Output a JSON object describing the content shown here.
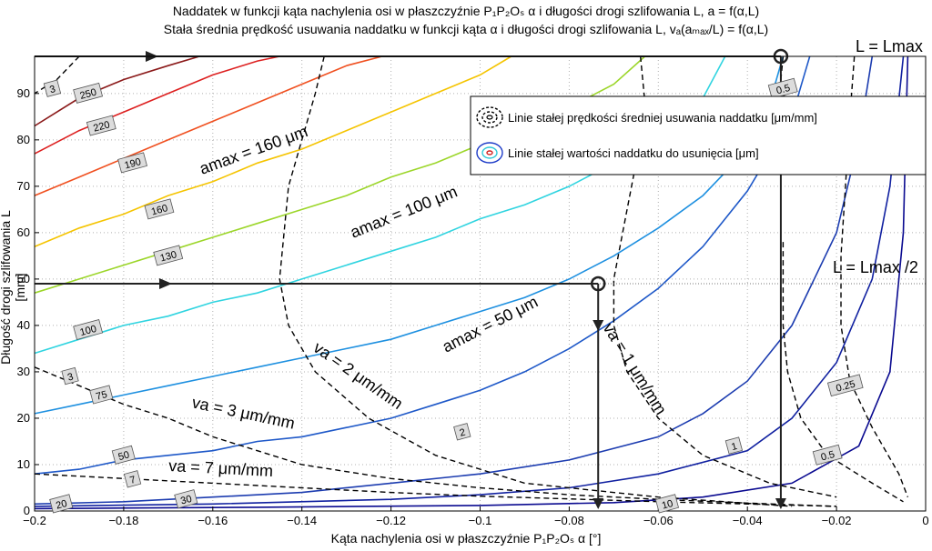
{
  "title_line1": "Naddatek w funkcji kąta nachylenia osi w płaszczyźnie P₁P₂Oₛ α i długości drogi szlifowania L, a = f(α,L)",
  "title_line2": "Stała średnia prędkość usuwania naddatku w funkcji kąta α i długości drogi szlifowania L, vₐ(aₘₐₓ/L) = f(α,L)",
  "xlabel": "Kąta nachylenia osi w płaszczyźnie P₁P₂Oₛ α [°]",
  "ylabel": "Długość drogi szlifowania L [mm]",
  "legend": {
    "black_lines": "Linie stałej prędkości średniej usuwania naddatku [μm/mm]",
    "color_lines": "Linie stałej wartości naddatku do usunięcia [μm]"
  },
  "annotations": {
    "L_max": "L = Lmax",
    "L_half": "L = Lmax /2",
    "a160": "amax = 160 μm",
    "a100": "amax = 100 μm",
    "a50": "amax = 50 μm",
    "va1": "va = 1 μm/mm",
    "va2": "va = 2 μm/mm",
    "va3": "va = 3 μm/mm",
    "va7": "va = 7 μm/mm"
  },
  "chart_data": {
    "type": "line",
    "xlim": [
      -0.2,
      0
    ],
    "ylim": [
      0,
      98
    ],
    "xticks": [
      -0.2,
      -0.18,
      -0.16,
      -0.14,
      -0.12,
      -0.1,
      -0.08,
      -0.06,
      -0.04,
      -0.02,
      0
    ],
    "yticks": [
      0,
      10,
      20,
      30,
      40,
      50,
      60,
      70,
      80,
      90
    ],
    "grid": true,
    "legend_position": "top-right",
    "contours_a": [
      {
        "level": "250",
        "color": "#8b1a1a",
        "points": [
          [
            -0.2,
            83
          ],
          [
            -0.19,
            89
          ],
          [
            -0.18,
            93
          ],
          [
            -0.17,
            96
          ],
          [
            -0.163,
            98
          ]
        ],
        "label_at": [
          -0.188,
          90
        ]
      },
      {
        "level": "220",
        "color": "#dd2020",
        "points": [
          [
            -0.2,
            77
          ],
          [
            -0.19,
            82
          ],
          [
            -0.18,
            86
          ],
          [
            -0.17,
            90
          ],
          [
            -0.16,
            94
          ],
          [
            -0.15,
            97
          ],
          [
            -0.145,
            98
          ]
        ],
        "label_at": [
          -0.185,
          83
        ]
      },
      {
        "level": "190",
        "color": "#f05020",
        "points": [
          [
            -0.2,
            68
          ],
          [
            -0.19,
            72
          ],
          [
            -0.18,
            76
          ],
          [
            -0.17,
            80
          ],
          [
            -0.16,
            84
          ],
          [
            -0.15,
            88
          ],
          [
            -0.14,
            92
          ],
          [
            -0.13,
            96
          ],
          [
            -0.122,
            98
          ]
        ],
        "label_at": [
          -0.178,
          75
        ]
      },
      {
        "level": "160",
        "color": "#f5c400",
        "points": [
          [
            -0.2,
            57
          ],
          [
            -0.19,
            61
          ],
          [
            -0.18,
            64
          ],
          [
            -0.17,
            68
          ],
          [
            -0.16,
            71
          ],
          [
            -0.15,
            75
          ],
          [
            -0.14,
            78
          ],
          [
            -0.13,
            82
          ],
          [
            -0.12,
            86
          ],
          [
            -0.11,
            90
          ],
          [
            -0.1,
            94
          ],
          [
            -0.093,
            98
          ]
        ],
        "label_at": [
          -0.172,
          65
        ]
      },
      {
        "level": "130",
        "color": "#9cd62a",
        "points": [
          [
            -0.2,
            47
          ],
          [
            -0.19,
            50
          ],
          [
            -0.18,
            53
          ],
          [
            -0.17,
            56
          ],
          [
            -0.16,
            59
          ],
          [
            -0.15,
            62
          ],
          [
            -0.14,
            65
          ],
          [
            -0.13,
            68
          ],
          [
            -0.12,
            72
          ],
          [
            -0.11,
            75
          ],
          [
            -0.1,
            79
          ],
          [
            -0.09,
            83
          ],
          [
            -0.08,
            87
          ],
          [
            -0.07,
            92
          ],
          [
            -0.063,
            98
          ]
        ],
        "label_at": [
          -0.17,
          55
        ]
      },
      {
        "level": "100",
        "color": "#30d4e0",
        "points": [
          [
            -0.2,
            34
          ],
          [
            -0.19,
            37
          ],
          [
            -0.18,
            40
          ],
          [
            -0.17,
            42
          ],
          [
            -0.16,
            45
          ],
          [
            -0.15,
            47
          ],
          [
            -0.14,
            50
          ],
          [
            -0.13,
            53
          ],
          [
            -0.12,
            56
          ],
          [
            -0.11,
            59
          ],
          [
            -0.1,
            63
          ],
          [
            -0.09,
            66
          ],
          [
            -0.08,
            70
          ],
          [
            -0.07,
            75
          ],
          [
            -0.06,
            81
          ],
          [
            -0.05,
            89
          ],
          [
            -0.045,
            98
          ]
        ],
        "label_at": [
          -0.188,
          39
        ]
      },
      {
        "level": "75",
        "color": "#1e90e0",
        "points": [
          [
            -0.2,
            21
          ],
          [
            -0.19,
            23
          ],
          [
            -0.18,
            25
          ],
          [
            -0.17,
            27
          ],
          [
            -0.16,
            29
          ],
          [
            -0.15,
            31
          ],
          [
            -0.14,
            33
          ],
          [
            -0.13,
            35
          ],
          [
            -0.12,
            37
          ],
          [
            -0.11,
            40
          ],
          [
            -0.1,
            43
          ],
          [
            -0.09,
            46
          ],
          [
            -0.08,
            50
          ],
          [
            -0.07,
            55
          ],
          [
            -0.06,
            61
          ],
          [
            -0.05,
            68
          ],
          [
            -0.04,
            78
          ],
          [
            -0.035,
            88
          ],
          [
            -0.032,
            98
          ]
        ],
        "label_at": [
          -0.185,
          25
        ]
      },
      {
        "level": "50",
        "color": "#1e58c8",
        "points": [
          [
            -0.2,
            8
          ],
          [
            -0.19,
            9
          ],
          [
            -0.18,
            11
          ],
          [
            -0.17,
            12
          ],
          [
            -0.16,
            13
          ],
          [
            -0.15,
            15
          ],
          [
            -0.14,
            16
          ],
          [
            -0.13,
            18
          ],
          [
            -0.12,
            20
          ],
          [
            -0.11,
            23
          ],
          [
            -0.1,
            26
          ],
          [
            -0.09,
            30
          ],
          [
            -0.08,
            35
          ],
          [
            -0.07,
            41
          ],
          [
            -0.06,
            48
          ],
          [
            -0.05,
            57
          ],
          [
            -0.04,
            69
          ],
          [
            -0.03,
            85
          ],
          [
            -0.026,
            98
          ]
        ],
        "label_at": [
          -0.18,
          12
        ]
      },
      {
        "level": "30",
        "color": "#1c3cb0",
        "points": [
          [
            -0.2,
            1.5
          ],
          [
            -0.18,
            2
          ],
          [
            -0.16,
            3
          ],
          [
            -0.14,
            4
          ],
          [
            -0.12,
            6
          ],
          [
            -0.1,
            8
          ],
          [
            -0.08,
            11
          ],
          [
            -0.06,
            16
          ],
          [
            -0.05,
            21
          ],
          [
            -0.04,
            28
          ],
          [
            -0.03,
            40
          ],
          [
            -0.02,
            60
          ],
          [
            -0.015,
            80
          ],
          [
            -0.012,
            98
          ]
        ],
        "label_at": [
          -0.166,
          2.5
        ]
      },
      {
        "level": "20",
        "color": "#1020a0",
        "points": [
          [
            -0.2,
            1
          ],
          [
            -0.16,
            1.5
          ],
          [
            -0.12,
            2.5
          ],
          [
            -0.1,
            3.5
          ],
          [
            -0.08,
            5
          ],
          [
            -0.06,
            8
          ],
          [
            -0.04,
            13
          ],
          [
            -0.03,
            20
          ],
          [
            -0.02,
            32
          ],
          [
            -0.012,
            50
          ],
          [
            -0.008,
            70
          ],
          [
            -0.005,
            98
          ]
        ],
        "label_at": [
          -0.194,
          1.5
        ]
      },
      {
        "level": "10",
        "color": "#0a0a90",
        "points": [
          [
            -0.2,
            0.5
          ],
          [
            -0.15,
            0.8
          ],
          [
            -0.1,
            1.2
          ],
          [
            -0.07,
            1.8
          ],
          [
            -0.05,
            3
          ],
          [
            -0.03,
            6
          ],
          [
            -0.015,
            14
          ],
          [
            -0.008,
            30
          ],
          [
            -0.005,
            60
          ],
          [
            -0.004,
            98
          ]
        ],
        "label_at": [
          -0.058,
          1.5
        ]
      }
    ],
    "contours_va": [
      {
        "level": "0.25",
        "points": [
          [
            -0.016,
            98
          ],
          [
            -0.017,
            85
          ],
          [
            -0.018,
            70
          ],
          [
            -0.019,
            55
          ],
          [
            -0.019,
            40
          ],
          [
            -0.017,
            28
          ],
          [
            -0.012,
            18
          ],
          [
            -0.006,
            8
          ],
          [
            -0.004,
            3
          ]
        ],
        "label_at": [
          -0.018,
          27
        ]
      },
      {
        "level": "0.5",
        "points": [
          [
            -0.032,
            98
          ],
          [
            -0.033,
            88
          ],
          [
            -0.033,
            80
          ]
        ],
        "label_at": [
          -0.032,
          91
        ]
      },
      {
        "level": "0.5",
        "points": [
          [
            -0.032,
            58
          ],
          [
            -0.032,
            40
          ],
          [
            -0.031,
            30
          ],
          [
            -0.028,
            20
          ],
          [
            -0.022,
            12
          ],
          [
            -0.012,
            6
          ],
          [
            -0.005,
            2
          ]
        ],
        "label_at": [
          -0.022,
          12
        ]
      },
      {
        "level": "1",
        "points": [
          [
            -0.064,
            98
          ],
          [
            -0.063,
            88
          ],
          [
            -0.065,
            75
          ],
          [
            -0.068,
            60
          ],
          [
            -0.07,
            50
          ],
          [
            -0.07,
            40
          ],
          [
            -0.067,
            30
          ],
          [
            -0.06,
            20
          ],
          [
            -0.05,
            12
          ],
          [
            -0.035,
            6
          ],
          [
            -0.02,
            3
          ]
        ],
        "label_at": [
          -0.043,
          14
        ]
      },
      {
        "level": "2",
        "points": [
          [
            -0.135,
            98
          ],
          [
            -0.137,
            90
          ],
          [
            -0.14,
            80
          ],
          [
            -0.143,
            70
          ],
          [
            -0.144,
            60
          ],
          [
            -0.145,
            50
          ],
          [
            -0.143,
            40
          ],
          [
            -0.137,
            30
          ],
          [
            -0.125,
            20
          ],
          [
            -0.11,
            12
          ],
          [
            -0.09,
            6
          ],
          [
            -0.06,
            3
          ],
          [
            -0.03,
            1
          ]
        ],
        "label_at": [
          -0.104,
          17
        ]
      },
      {
        "level": "3",
        "points": [
          [
            -0.2,
            31
          ],
          [
            -0.19,
            27
          ],
          [
            -0.18,
            23
          ],
          [
            -0.17,
            20
          ],
          [
            -0.16,
            16
          ],
          [
            -0.15,
            13
          ],
          [
            -0.14,
            10
          ],
          [
            -0.12,
            7
          ],
          [
            -0.1,
            5
          ],
          [
            -0.08,
            3.5
          ],
          [
            -0.06,
            2.5
          ],
          [
            -0.04,
            1.7
          ],
          [
            -0.02,
            1
          ]
        ],
        "label_at": [
          -0.192,
          29
        ]
      },
      {
        "level": "7",
        "points": [
          [
            -0.2,
            8
          ],
          [
            -0.18,
            7
          ],
          [
            -0.16,
            6
          ],
          [
            -0.14,
            5
          ],
          [
            -0.12,
            4
          ],
          [
            -0.1,
            3.2
          ],
          [
            -0.08,
            2.6
          ],
          [
            -0.06,
            2
          ],
          [
            -0.04,
            1.5
          ],
          [
            -0.02,
            1
          ]
        ],
        "label_at": [
          -0.178,
          6.8
        ]
      },
      {
        "level": "3",
        "points": [
          [
            -0.19,
            98
          ],
          [
            -0.195,
            93
          ],
          [
            -0.2,
            90
          ]
        ],
        "label_at": [
          -0.196,
          91
        ]
      }
    ],
    "reference_lines": {
      "L_max": 98,
      "L_half": 49,
      "alpha_1": -0.0735,
      "alpha_2": -0.0325
    }
  }
}
